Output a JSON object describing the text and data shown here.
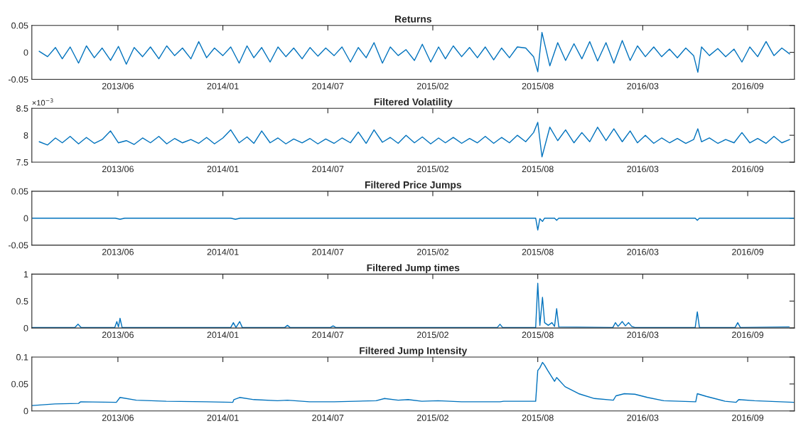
{
  "chart_data": [
    {
      "type": "line",
      "title": "Returns",
      "x": [
        "2013-01-16",
        "2013-02-01",
        "2013-02-16",
        "2013-03-01",
        "2013-03-16",
        "2013-04-01",
        "2013-04-16",
        "2013-05-01",
        "2013-05-16",
        "2013-06-01",
        "2013-06-16",
        "2013-07-01",
        "2013-07-16",
        "2013-08-01",
        "2013-08-16",
        "2013-09-01",
        "2013-09-16",
        "2013-10-01",
        "2013-10-16",
        "2013-11-01",
        "2013-11-16",
        "2013-12-01",
        "2013-12-16",
        "2014-01-01",
        "2014-01-16",
        "2014-02-01",
        "2014-02-16",
        "2014-03-01",
        "2014-03-16",
        "2014-04-01",
        "2014-04-16",
        "2014-05-01",
        "2014-05-16",
        "2014-06-01",
        "2014-06-16",
        "2014-07-01",
        "2014-07-16",
        "2014-08-01",
        "2014-08-16",
        "2014-09-01",
        "2014-09-16",
        "2014-10-01",
        "2014-10-16",
        "2014-11-01",
        "2014-11-16",
        "2014-12-01",
        "2014-12-16",
        "2015-01-01",
        "2015-01-16",
        "2015-02-01",
        "2015-02-16",
        "2015-03-01",
        "2015-03-16",
        "2015-04-01",
        "2015-04-16",
        "2015-05-01",
        "2015-05-16",
        "2015-06-01",
        "2015-06-16",
        "2015-07-01",
        "2015-07-16",
        "2015-08-01",
        "2015-08-16",
        "2015-08-24",
        "2015-09-01",
        "2015-09-16",
        "2015-10-01",
        "2015-10-16",
        "2015-11-01",
        "2015-11-16",
        "2015-12-01",
        "2015-12-16",
        "2016-01-01",
        "2016-01-16",
        "2016-02-01",
        "2016-02-16",
        "2016-03-01",
        "2016-03-16",
        "2016-04-01",
        "2016-04-16",
        "2016-05-01",
        "2016-05-16",
        "2016-06-01",
        "2016-06-16",
        "2016-06-24",
        "2016-07-01",
        "2016-07-16",
        "2016-08-01",
        "2016-08-16",
        "2016-09-01",
        "2016-09-16",
        "2016-10-01",
        "2016-10-16",
        "2016-11-01",
        "2016-11-16",
        "2016-12-01",
        "2016-12-16"
      ],
      "series": [
        {
          "color": "#0072bd",
          "values": [
            0.002,
            -0.008,
            0.009,
            -0.012,
            0.01,
            -0.02,
            0.012,
            -0.01,
            0.008,
            -0.015,
            0.011,
            -0.022,
            0.009,
            -0.008,
            0.01,
            -0.012,
            0.012,
            -0.006,
            0.008,
            -0.012,
            0.02,
            -0.01,
            0.008,
            -0.006,
            0.01,
            -0.02,
            0.012,
            -0.01,
            0.009,
            -0.018,
            0.01,
            -0.008,
            0.008,
            -0.012,
            0.009,
            -0.007,
            0.008,
            -0.006,
            0.01,
            -0.018,
            0.009,
            -0.01,
            0.018,
            -0.02,
            0.01,
            -0.006,
            0.005,
            -0.015,
            0.015,
            -0.018,
            0.01,
            -0.012,
            0.012,
            -0.008,
            0.009,
            -0.01,
            0.01,
            -0.014,
            0.008,
            -0.01,
            0.01,
            0.008,
            -0.008,
            -0.036,
            0.037,
            -0.025,
            0.018,
            -0.015,
            0.016,
            -0.012,
            0.02,
            -0.016,
            0.018,
            -0.02,
            0.022,
            -0.015,
            0.012,
            -0.008,
            0.01,
            -0.008,
            0.006,
            -0.01,
            0.008,
            -0.006,
            -0.037,
            0.01,
            -0.006,
            0.007,
            -0.008,
            0.006,
            -0.018,
            0.01,
            -0.008,
            0.02,
            -0.006,
            0.008,
            -0.003
          ]
        }
      ],
      "xlim": [
        "2013-01-02",
        "2016-12-25"
      ],
      "xticks": [
        {
          "value": "2013-06-15",
          "label": "2013/06"
        },
        {
          "value": "2014-01-01",
          "label": "2014/01"
        },
        {
          "value": "2014-07-20",
          "label": "2014/07"
        },
        {
          "value": "2015-02-05",
          "label": "2015/02"
        },
        {
          "value": "2015-08-24",
          "label": "2015/08"
        },
        {
          "value": "2016-03-11",
          "label": "2016/03"
        },
        {
          "value": "2016-09-27",
          "label": "2016/09"
        }
      ],
      "ylim": [
        -0.05,
        0.05
      ],
      "yticks": [
        {
          "value": -0.05,
          "label": "-0.05"
        },
        0,
        0.05
      ],
      "grid": false,
      "legend": false
    },
    {
      "type": "line",
      "title": "Filtered Volatility",
      "x": [
        "2013-01-16",
        "2013-02-01",
        "2013-02-16",
        "2013-03-01",
        "2013-03-16",
        "2013-04-01",
        "2013-04-16",
        "2013-05-01",
        "2013-05-16",
        "2013-06-01",
        "2013-06-16",
        "2013-07-01",
        "2013-07-16",
        "2013-08-01",
        "2013-08-16",
        "2013-09-01",
        "2013-09-16",
        "2013-10-01",
        "2013-10-16",
        "2013-11-01",
        "2013-11-16",
        "2013-12-01",
        "2013-12-16",
        "2014-01-01",
        "2014-01-16",
        "2014-02-01",
        "2014-02-16",
        "2014-03-01",
        "2014-03-16",
        "2014-04-01",
        "2014-04-16",
        "2014-05-01",
        "2014-05-16",
        "2014-06-01",
        "2014-06-16",
        "2014-07-01",
        "2014-07-16",
        "2014-08-01",
        "2014-08-16",
        "2014-09-01",
        "2014-09-16",
        "2014-10-01",
        "2014-10-16",
        "2014-11-01",
        "2014-11-16",
        "2014-12-01",
        "2014-12-16",
        "2015-01-01",
        "2015-01-16",
        "2015-02-01",
        "2015-02-16",
        "2015-03-01",
        "2015-03-16",
        "2015-04-01",
        "2015-04-16",
        "2015-05-01",
        "2015-05-16",
        "2015-06-01",
        "2015-06-16",
        "2015-07-01",
        "2015-07-16",
        "2015-08-01",
        "2015-08-16",
        "2015-08-24",
        "2015-09-01",
        "2015-09-16",
        "2015-10-01",
        "2015-10-16",
        "2015-11-01",
        "2015-11-16",
        "2015-12-01",
        "2015-12-16",
        "2016-01-01",
        "2016-01-16",
        "2016-02-01",
        "2016-02-16",
        "2016-03-01",
        "2016-03-16",
        "2016-04-01",
        "2016-04-16",
        "2016-05-01",
        "2016-05-16",
        "2016-06-01",
        "2016-06-16",
        "2016-06-24",
        "2016-07-01",
        "2016-07-16",
        "2016-08-01",
        "2016-08-16",
        "2016-09-01",
        "2016-09-16",
        "2016-10-01",
        "2016-10-16",
        "2016-11-01",
        "2016-11-16",
        "2016-12-01",
        "2016-12-16"
      ],
      "series": [
        {
          "color": "#0072bd",
          "values": [
            7.88,
            7.82,
            7.95,
            7.86,
            7.98,
            7.84,
            7.96,
            7.85,
            7.92,
            8.08,
            7.86,
            7.9,
            7.83,
            7.95,
            7.86,
            7.98,
            7.84,
            7.94,
            7.86,
            7.92,
            7.85,
            7.96,
            7.84,
            7.95,
            8.1,
            7.86,
            7.97,
            7.85,
            8.08,
            7.86,
            7.95,
            7.84,
            7.93,
            7.86,
            7.94,
            7.84,
            7.93,
            7.85,
            7.95,
            7.86,
            8.06,
            7.85,
            8.1,
            7.87,
            7.96,
            7.85,
            8.0,
            7.86,
            7.97,
            7.84,
            7.95,
            7.86,
            7.96,
            7.85,
            7.94,
            7.86,
            7.98,
            7.85,
            7.96,
            7.86,
            8.0,
            7.88,
            8.05,
            8.24,
            7.6,
            8.15,
            7.9,
            8.1,
            7.86,
            8.05,
            7.88,
            8.15,
            7.9,
            8.12,
            7.88,
            8.08,
            7.86,
            8.0,
            7.85,
            7.95,
            7.86,
            7.94,
            7.85,
            7.92,
            8.12,
            7.88,
            7.95,
            7.85,
            7.92,
            7.86,
            8.05,
            7.86,
            7.94,
            7.85,
            7.98,
            7.86,
            7.92
          ]
        }
      ],
      "xlim": [
        "2013-01-02",
        "2016-12-25"
      ],
      "xticks": [
        {
          "value": "2013-06-15",
          "label": "2013/06"
        },
        {
          "value": "2014-01-01",
          "label": "2014/01"
        },
        {
          "value": "2014-07-20",
          "label": "2014/07"
        },
        {
          "value": "2015-02-05",
          "label": "2015/02"
        },
        {
          "value": "2015-08-24",
          "label": "2015/08"
        },
        {
          "value": "2016-03-11",
          "label": "2016/03"
        },
        {
          "value": "2016-09-27",
          "label": "2016/09"
        }
      ],
      "ylim": [
        7.5,
        8.5
      ],
      "yticks": [
        7.5,
        8,
        8.5
      ],
      "annotations": [
        "×10$^{−3}$"
      ],
      "grid": false,
      "legend": false
    },
    {
      "type": "line",
      "title": "Filtered Price Jumps",
      "x": [
        "2013-01-03",
        "2013-06-10",
        "2013-06-19",
        "2013-06-28",
        "2014-01-16",
        "2014-01-25",
        "2014-02-03",
        "2015-08-20",
        "2015-08-24",
        "2015-08-28",
        "2015-09-02",
        "2015-09-06",
        "2015-09-25",
        "2015-09-29",
        "2015-10-03",
        "2016-06-19",
        "2016-06-23",
        "2016-06-27",
        "2016-12-24"
      ],
      "series": [
        {
          "color": "#0072bd",
          "values": [
            0,
            0,
            -0.002,
            0,
            0,
            -0.002,
            0,
            0,
            -0.022,
            -0.001,
            -0.006,
            0,
            0,
            -0.004,
            0,
            0,
            -0.004,
            0,
            0
          ]
        }
      ],
      "xlim": [
        "2013-01-02",
        "2016-12-25"
      ],
      "xticks": [
        {
          "value": "2013-06-15",
          "label": "2013/06"
        },
        {
          "value": "2014-01-01",
          "label": "2014/01"
        },
        {
          "value": "2014-07-20",
          "label": "2014/07"
        },
        {
          "value": "2015-02-05",
          "label": "2015/02"
        },
        {
          "value": "2015-08-24",
          "label": "2015/08"
        },
        {
          "value": "2016-03-11",
          "label": "2016/03"
        },
        {
          "value": "2016-09-27",
          "label": "2016/09"
        }
      ],
      "ylim": [
        -0.05,
        0.05
      ],
      "yticks": [
        {
          "value": -0.05,
          "label": "-0.05"
        },
        0,
        0.05
      ],
      "grid": false,
      "legend": false
    },
    {
      "type": "line",
      "title": "Filtered Jump times",
      "x": [
        "2013-01-03",
        "2013-03-25",
        "2013-03-31",
        "2013-04-06",
        "2013-06-09",
        "2013-06-13",
        "2013-06-16",
        "2013-06-19",
        "2013-06-23",
        "2014-01-16",
        "2014-01-21",
        "2014-01-26",
        "2014-02-02",
        "2014-02-07",
        "2014-04-29",
        "2014-05-04",
        "2014-05-09",
        "2014-07-25",
        "2014-07-30",
        "2014-08-04",
        "2015-06-08",
        "2015-06-13",
        "2015-06-18",
        "2015-08-20",
        "2015-08-24",
        "2015-08-28",
        "2015-09-02",
        "2015-09-06",
        "2015-09-13",
        "2015-09-20",
        "2015-09-25",
        "2015-09-29",
        "2015-10-03",
        "2016-01-14",
        "2016-01-19",
        "2016-01-24",
        "2016-02-01",
        "2016-02-07",
        "2016-02-13",
        "2016-02-19",
        "2016-02-25",
        "2016-06-19",
        "2016-06-23",
        "2016-06-27",
        "2016-09-03",
        "2016-09-08",
        "2016-09-13",
        "2016-12-15"
      ],
      "series": [
        {
          "color": "#0072bd",
          "values": [
            0.01,
            0.01,
            0.07,
            0.01,
            0.01,
            0.12,
            0.02,
            0.18,
            0.01,
            0.01,
            0.1,
            0.01,
            0.12,
            0.01,
            0.01,
            0.05,
            0.01,
            0.01,
            0.04,
            0.01,
            0.01,
            0.07,
            0.01,
            0.01,
            0.83,
            0.05,
            0.57,
            0.1,
            0.05,
            0.1,
            0.03,
            0.36,
            0.02,
            0.01,
            0.1,
            0.03,
            0.12,
            0.04,
            0.1,
            0.03,
            0.01,
            0.01,
            0.3,
            0.01,
            0.01,
            0.1,
            0.01,
            0.02
          ]
        }
      ],
      "xlim": [
        "2013-01-02",
        "2016-12-25"
      ],
      "xticks": [
        {
          "value": "2013-06-15",
          "label": "2013/06"
        },
        {
          "value": "2014-01-01",
          "label": "2014/01"
        },
        {
          "value": "2014-07-20",
          "label": "2014/07"
        },
        {
          "value": "2015-02-05",
          "label": "2015/02"
        },
        {
          "value": "2015-08-24",
          "label": "2015/08"
        },
        {
          "value": "2016-03-11",
          "label": "2016/03"
        },
        {
          "value": "2016-09-27",
          "label": "2016/09"
        }
      ],
      "ylim": [
        0,
        1
      ],
      "yticks": [
        0,
        0.5,
        1
      ],
      "grid": false,
      "legend": false
    },
    {
      "type": "line",
      "title": "Filtered Jump Intensity",
      "x": [
        "2013-01-03",
        "2013-02-15",
        "2013-04-01",
        "2013-04-05",
        "2013-06-12",
        "2013-06-19",
        "2013-07-20",
        "2013-09-15",
        "2013-12-01",
        "2014-01-20",
        "2014-01-22",
        "2014-02-02",
        "2014-03-01",
        "2014-04-15",
        "2014-05-04",
        "2014-06-15",
        "2014-08-01",
        "2014-10-20",
        "2014-11-05",
        "2014-12-01",
        "2014-12-20",
        "2015-01-15",
        "2015-02-15",
        "2015-04-01",
        "2015-06-13",
        "2015-06-20",
        "2015-08-20",
        "2015-08-24",
        "2015-08-28",
        "2015-09-02",
        "2015-09-06",
        "2015-09-12",
        "2015-09-25",
        "2015-09-29",
        "2015-10-15",
        "2015-11-10",
        "2015-12-10",
        "2016-01-15",
        "2016-01-20",
        "2016-02-05",
        "2016-02-25",
        "2016-03-20",
        "2016-04-20",
        "2016-06-20",
        "2016-06-23",
        "2016-07-10",
        "2016-08-15",
        "2016-09-05",
        "2016-09-10",
        "2016-10-10",
        "2016-12-24"
      ],
      "series": [
        {
          "color": "#0072bd",
          "values": [
            0.01,
            0.013,
            0.014,
            0.017,
            0.016,
            0.025,
            0.02,
            0.018,
            0.017,
            0.016,
            0.021,
            0.025,
            0.021,
            0.019,
            0.02,
            0.017,
            0.017,
            0.019,
            0.023,
            0.02,
            0.021,
            0.018,
            0.019,
            0.017,
            0.017,
            0.018,
            0.018,
            0.075,
            0.08,
            0.09,
            0.085,
            0.075,
            0.055,
            0.062,
            0.045,
            0.032,
            0.023,
            0.02,
            0.028,
            0.032,
            0.031,
            0.025,
            0.019,
            0.017,
            0.032,
            0.027,
            0.018,
            0.016,
            0.021,
            0.019,
            0.016
          ]
        }
      ],
      "xlim": [
        "2013-01-02",
        "2016-12-25"
      ],
      "xticks": [
        {
          "value": "2013-06-15",
          "label": "2013/06"
        },
        {
          "value": "2014-01-01",
          "label": "2014/01"
        },
        {
          "value": "2014-07-20",
          "label": "2014/07"
        },
        {
          "value": "2015-02-05",
          "label": "2015/02"
        },
        {
          "value": "2015-08-24",
          "label": "2015/08"
        },
        {
          "value": "2016-03-11",
          "label": "2016/03"
        },
        {
          "value": "2016-09-27",
          "label": "2016/09"
        }
      ],
      "ylim": [
        0,
        0.1
      ],
      "yticks": [
        0,
        0.05,
        0.1
      ],
      "grid": false,
      "legend": false
    }
  ]
}
